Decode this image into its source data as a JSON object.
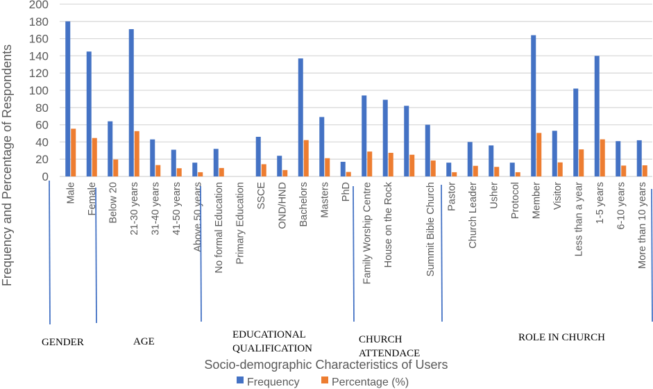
{
  "chart_data": {
    "type": "bar",
    "title": "",
    "xlabel": "Socio-demographic Characteristics of Users",
    "ylabel": "Frequency and Percentage of Respondents",
    "ylim": [
      0,
      200
    ],
    "yticks": [
      0,
      20,
      40,
      60,
      80,
      100,
      120,
      140,
      160,
      180,
      200
    ],
    "grid": true,
    "legend_position": "bottom",
    "categories": [
      "Male",
      "Female",
      "Below 20",
      "21-30 years",
      "31-40 years",
      "41-50 years",
      "Above 50 years",
      "No formal Education",
      "Primary Education",
      "SSCE",
      "OND/HND",
      "Bachelors",
      "Masters",
      "PhD",
      "Family Worship Centre",
      "House on the Rock",
      "",
      "Summit Bible Church",
      "Pastor",
      "Church Leader",
      "Usher",
      "Protocol",
      "Member",
      "Visitor",
      "Less than a year",
      "1-5 years",
      "6-10 years",
      "More than 10 years"
    ],
    "series": [
      {
        "name": "Frequency",
        "color": "#4472C4",
        "values": [
          180,
          145,
          64,
          171,
          43,
          31,
          16,
          32,
          0,
          46,
          24,
          137,
          69,
          17,
          94,
          89,
          82,
          60,
          16,
          40,
          36,
          16,
          164,
          53,
          102,
          140,
          41,
          42
        ]
      },
      {
        "name": "Percentage (%)",
        "color": "#ED7D31",
        "values": [
          55.4,
          44.6,
          19.7,
          52.6,
          13.2,
          9.5,
          4.9,
          9.8,
          0,
          14.2,
          7.4,
          42.2,
          21.2,
          5.2,
          28.9,
          27.4,
          25.2,
          18.5,
          4.9,
          12.3,
          11.1,
          4.9,
          50.5,
          16.3,
          31.4,
          43.1,
          12.6,
          12.9
        ]
      }
    ],
    "groups": [
      {
        "label_lines": [
          "GENDER"
        ]
      },
      {
        "label_lines": [
          "AGE"
        ]
      },
      {
        "label_lines": [
          "EDUCATIONAL",
          "QUALIFICATION"
        ]
      },
      {
        "label_lines": [
          "CHURCH",
          "ATTENDACE"
        ]
      },
      {
        "label_lines": [
          "ROLE IN CHURCH"
        ]
      }
    ]
  }
}
